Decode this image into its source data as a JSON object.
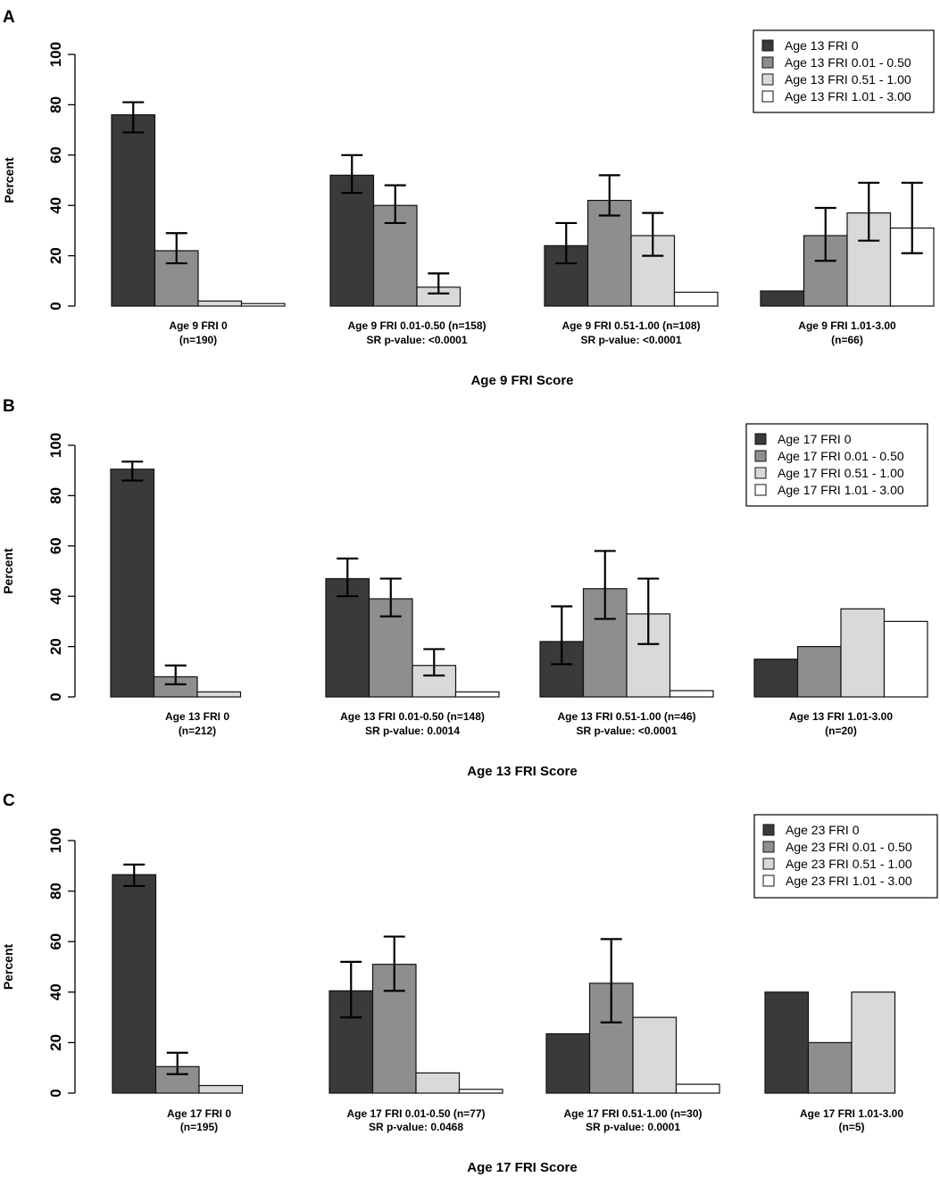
{
  "chart_data": [
    {
      "panel": "A",
      "type": "bar",
      "ylabel": "Percent",
      "xlabel": "Age 9 FRI Score",
      "ylim": [
        0,
        100
      ],
      "yticks": [
        "0",
        "20",
        "40",
        "60",
        "80",
        "100"
      ],
      "legend_position": "top-right",
      "groups": [
        {
          "label": "Age 9 FRI 0",
          "sub": "(n=190)"
        },
        {
          "label": "Age 9 FRI 0.01-0.50 (n=158)",
          "sub": "SR p-value: <0.0001"
        },
        {
          "label": "Age 9 FRI 0.51-1.00 (n=108)",
          "sub": "SR p-value: <0.0001"
        },
        {
          "label": "Age 9 FRI 1.01-3.00",
          "sub": "(n=66)"
        }
      ],
      "series": [
        {
          "name": "Age 13 FRI 0",
          "color": "#3a3a3a",
          "values": [
            76,
            52,
            24,
            6
          ],
          "err_low": [
            69,
            45,
            17,
            null
          ],
          "err_high": [
            81,
            60,
            33,
            null
          ]
        },
        {
          "name": "Age 13 FRI 0.01 - 0.50",
          "color": "#8e8e8e",
          "values": [
            22,
            40,
            42,
            28
          ],
          "err_low": [
            17,
            33,
            36,
            18
          ],
          "err_high": [
            29,
            48,
            52,
            39
          ]
        },
        {
          "name": "Age 13 FRI 0.51 - 1.00",
          "color": "#d9d9d9",
          "values": [
            2,
            7.5,
            28,
            37
          ],
          "err_low": [
            null,
            5,
            20,
            26
          ],
          "err_high": [
            null,
            13,
            37,
            49
          ]
        },
        {
          "name": "Age 13 FRI 1.01 - 3.00",
          "color": "#ffffff",
          "values": [
            1,
            0,
            5.5,
            31
          ],
          "err_low": [
            null,
            null,
            null,
            21
          ],
          "err_high": [
            null,
            null,
            null,
            49
          ]
        }
      ]
    },
    {
      "panel": "B",
      "type": "bar",
      "ylabel": "Percent",
      "xlabel": "Age 13 FRI Score",
      "ylim": [
        0,
        100
      ],
      "yticks": [
        "0",
        "20",
        "40",
        "60",
        "80",
        "100"
      ],
      "legend_position": "top-right",
      "groups": [
        {
          "label": "Age 13 FRI 0",
          "sub": "(n=212)"
        },
        {
          "label": "Age 13 FRI 0.01-0.50 (n=148)",
          "sub": "SR p-value: 0.0014"
        },
        {
          "label": "Age 13 FRI 0.51-1.00 (n=46)",
          "sub": "SR p-value: <0.0001"
        },
        {
          "label": "Age 13 FRI 1.01-3.00",
          "sub": "(n=20)"
        }
      ],
      "series": [
        {
          "name": "Age 17 FRI 0",
          "color": "#3a3a3a",
          "values": [
            90.5,
            47,
            22,
            15
          ],
          "err_low": [
            86,
            40,
            13,
            null
          ],
          "err_high": [
            93.5,
            55,
            36,
            null
          ]
        },
        {
          "name": "Age 17 FRI 0.01 - 0.50",
          "color": "#8e8e8e",
          "values": [
            8,
            39,
            43,
            20
          ],
          "err_low": [
            5,
            32,
            31,
            null
          ],
          "err_high": [
            12.5,
            47,
            58,
            null
          ]
        },
        {
          "name": "Age 17 FRI 0.51 - 1.00",
          "color": "#d9d9d9",
          "values": [
            2,
            12.5,
            33,
            35
          ],
          "err_low": [
            null,
            8.5,
            21,
            null
          ],
          "err_high": [
            null,
            19,
            47,
            null
          ]
        },
        {
          "name": "Age 17 FRI 1.01 - 3.00",
          "color": "#ffffff",
          "values": [
            0,
            2,
            2.5,
            30
          ],
          "err_low": [
            null,
            null,
            null,
            null
          ],
          "err_high": [
            null,
            null,
            null,
            null
          ]
        }
      ]
    },
    {
      "panel": "C",
      "type": "bar",
      "ylabel": "Percent",
      "xlabel": "Age 17 FRI Score",
      "ylim": [
        0,
        100
      ],
      "yticks": [
        "0",
        "20",
        "40",
        "60",
        "80",
        "100"
      ],
      "legend_position": "top-right",
      "groups": [
        {
          "label": "Age 17 FRI 0",
          "sub": "(n=195)"
        },
        {
          "label": "Age 17 FRI 0.01-0.50 (n=77)",
          "sub": "SR p-value: 0.0468"
        },
        {
          "label": "Age 17 FRI 0.51-1.00 (n=30)",
          "sub": "SR p-value: 0.0001"
        },
        {
          "label": "Age 17 FRI 1.01-3.00",
          "sub": "(n=5)"
        }
      ],
      "series": [
        {
          "name": "Age 23 FRI 0",
          "color": "#3a3a3a",
          "values": [
            86.5,
            40.5,
            23.5,
            40
          ],
          "err_low": [
            82,
            30,
            null,
            null
          ],
          "err_high": [
            90.5,
            52,
            null,
            null
          ]
        },
        {
          "name": "Age 23 FRI 0.01 - 0.50",
          "color": "#8e8e8e",
          "values": [
            10.5,
            51,
            43.5,
            20
          ],
          "err_low": [
            7.5,
            40.5,
            28,
            null
          ],
          "err_high": [
            16,
            62,
            61,
            null
          ]
        },
        {
          "name": "Age 23 FRI 0.51 - 1.00",
          "color": "#d9d9d9",
          "values": [
            3,
            8,
            30,
            40
          ],
          "err_low": [
            null,
            null,
            null,
            null
          ],
          "err_high": [
            null,
            null,
            null,
            null
          ]
        },
        {
          "name": "Age 23 FRI 1.01 - 3.00",
          "color": "#ffffff",
          "values": [
            0,
            1.5,
            3.5,
            0
          ],
          "err_low": [
            null,
            null,
            null,
            null
          ],
          "err_high": [
            null,
            null,
            null,
            null
          ]
        }
      ]
    }
  ]
}
